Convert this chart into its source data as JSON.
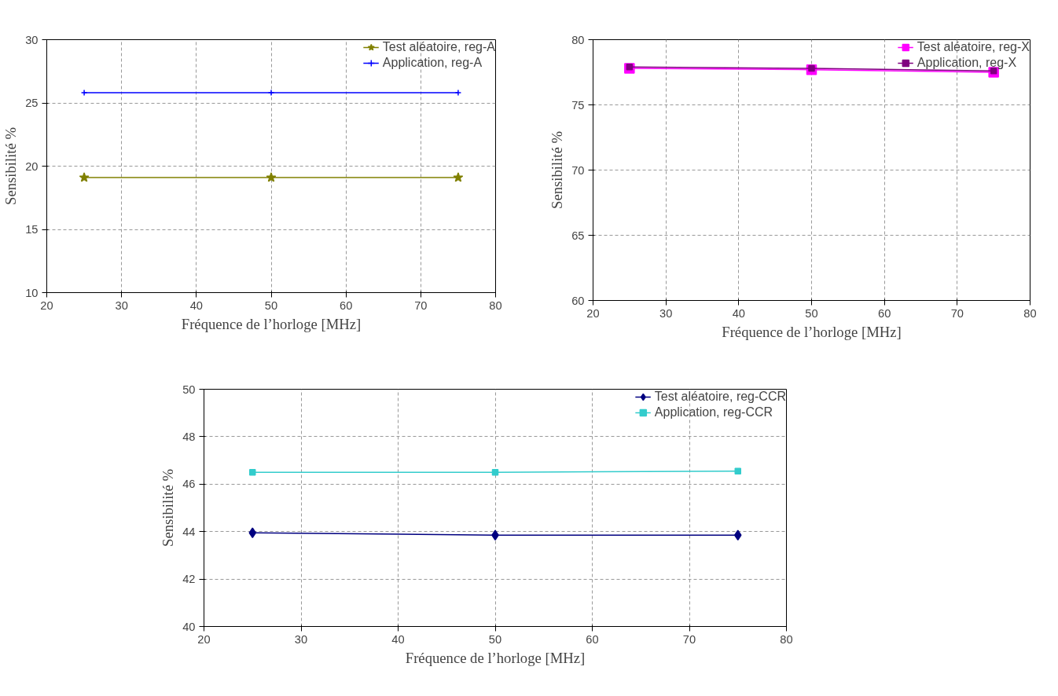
{
  "chart_data": [
    {
      "type": "line",
      "xlabel": "Fréquence de l’horloge [MHz]",
      "ylabel": "Sensibilité %",
      "x": [
        25,
        50,
        75
      ],
      "xlim": [
        20,
        80
      ],
      "xticks": [
        20,
        30,
        40,
        50,
        60,
        70,
        80
      ],
      "ylim": [
        10,
        30
      ],
      "yticks": [
        10,
        15,
        20,
        25,
        30
      ],
      "grid": true,
      "legend": "top right",
      "series": [
        {
          "name": "Test aléatoire, reg-A",
          "color": "#808000",
          "marker": "star",
          "values": [
            19.1,
            19.1,
            19.1
          ]
        },
        {
          "name": "Application, reg-A",
          "color": "#0000ff",
          "marker": "cross",
          "values": [
            25.8,
            25.8,
            25.8
          ]
        }
      ]
    },
    {
      "type": "line",
      "xlabel": "Fréquence de l’horloge [MHz]",
      "ylabel": "Sensibilité %",
      "x": [
        25,
        50,
        75
      ],
      "xlim": [
        20,
        80
      ],
      "xticks": [
        20,
        30,
        40,
        50,
        60,
        70,
        80
      ],
      "ylim": [
        60,
        80
      ],
      "yticks": [
        60,
        65,
        70,
        75,
        80
      ],
      "grid": true,
      "legend": "top right",
      "series": [
        {
          "name": "Test aléatoire, reg-X",
          "color": "#ff00ff",
          "marker": "square",
          "values": [
            77.8,
            77.7,
            77.5
          ]
        },
        {
          "name": "Application, reg-X",
          "color": "#800080",
          "marker": "square",
          "values": [
            77.9,
            77.8,
            77.6
          ]
        }
      ]
    },
    {
      "type": "line",
      "xlabel": "Fréquence de l’horloge [MHz]",
      "ylabel": "Sensibilité %",
      "x": [
        25,
        50,
        75
      ],
      "xlim": [
        20,
        80
      ],
      "xticks": [
        20,
        30,
        40,
        50,
        60,
        70,
        80
      ],
      "ylim": [
        40,
        50
      ],
      "yticks": [
        40,
        42,
        44,
        46,
        48,
        50
      ],
      "grid": true,
      "legend": "top right",
      "series": [
        {
          "name": "Test aléatoire, reg-CCR",
          "color": "#000080",
          "marker": "diamond",
          "values": [
            43.95,
            43.85,
            43.85
          ]
        },
        {
          "name": "Application, reg-CCR",
          "color": "#33cccc",
          "marker": "square",
          "values": [
            46.5,
            46.5,
            46.55
          ]
        }
      ]
    }
  ]
}
